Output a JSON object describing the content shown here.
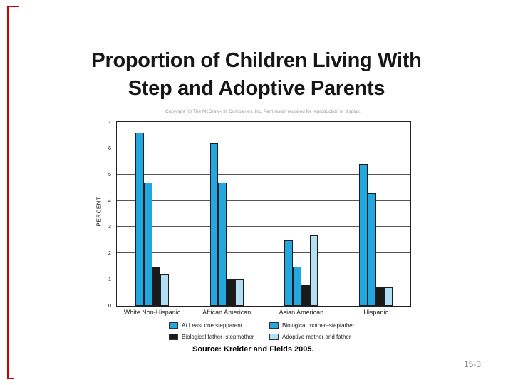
{
  "slide": {
    "title_line1": "Proportion of Children Living With",
    "title_line2": "Step and Adoptive Parents",
    "source": "Source: Kreider and Fields 2005.",
    "page_number": "15-3",
    "accent_color": "#CC0000"
  },
  "chart_data": {
    "type": "bar",
    "title": "Copyright (c) The McGraw-Hill Companies, Inc. Permission required for reproduction or display.",
    "xlabel": "",
    "ylabel": "PERCENT",
    "ylim": [
      0,
      7
    ],
    "yticks": [
      0,
      1,
      2,
      3,
      4,
      5,
      6,
      7
    ],
    "grid": true,
    "legend_position": "bottom",
    "categories": [
      "White Non-Hispanic",
      "African American",
      "Asian American",
      "Hispanic"
    ],
    "series": [
      {
        "name": "At Least one stepparent",
        "color": "#22A7E0",
        "values": [
          6.6,
          6.2,
          2.5,
          5.4
        ]
      },
      {
        "name": "Biological mother–stepfather",
        "color": "#22A7E0",
        "values": [
          4.7,
          4.7,
          1.5,
          4.3
        ]
      },
      {
        "name": "Biological father–stepmother",
        "color": "#1A1A1A",
        "values": [
          1.5,
          1.0,
          0.8,
          0.7
        ]
      },
      {
        "name": "Adoptive mother and father",
        "color": "#B3DFF5",
        "values": [
          1.2,
          1.0,
          2.7,
          0.7
        ]
      }
    ]
  }
}
